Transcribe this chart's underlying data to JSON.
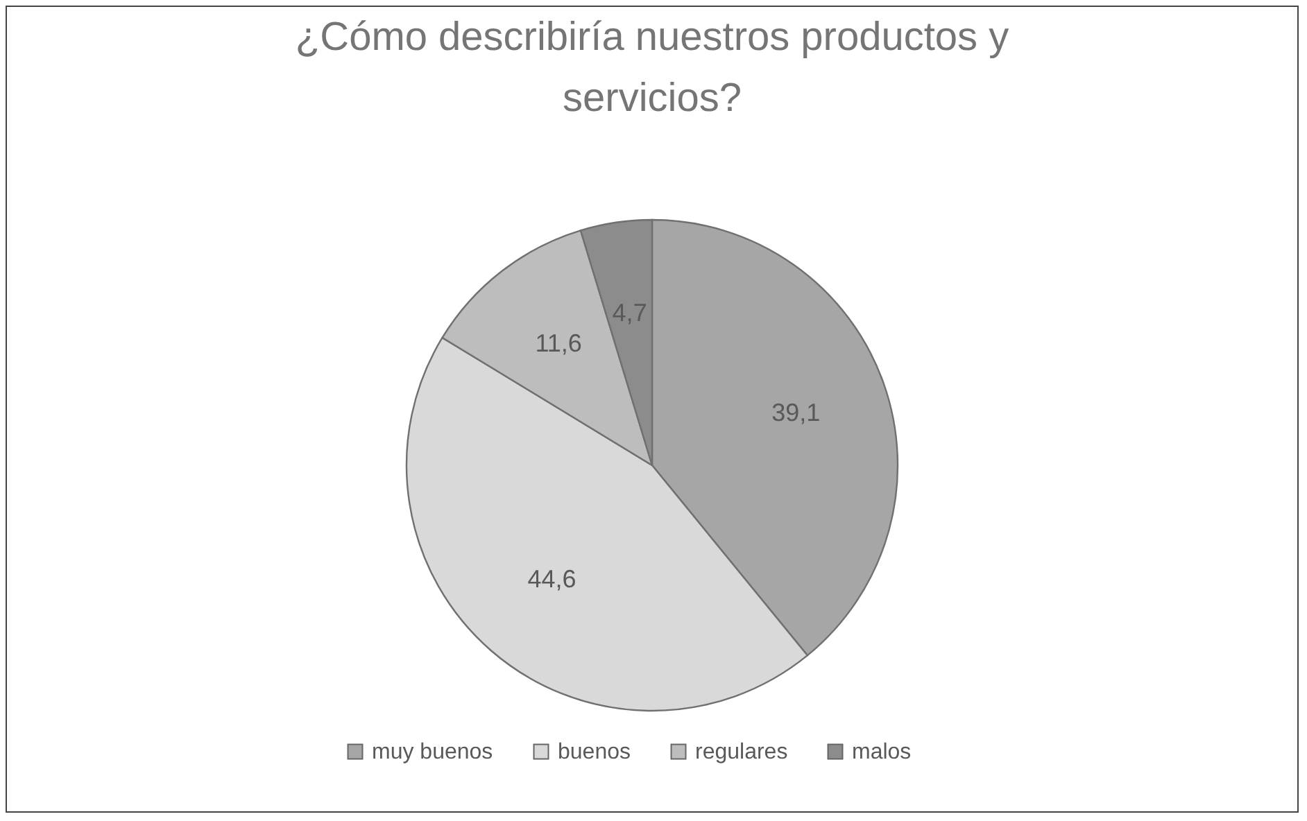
{
  "chart_data": {
    "type": "pie",
    "title": "¿Cómo describiría nuestros productos y servicios?",
    "categories": [
      "muy buenos",
      "buenos",
      "regulares",
      "malos"
    ],
    "values": [
      39.1,
      44.6,
      11.6,
      4.7
    ],
    "colors": [
      "#a6a6a6",
      "#d9d9d9",
      "#bdbdbd",
      "#8c8c8c"
    ],
    "value_labels": [
      "39,1",
      "44,6",
      "11,6",
      "4,7"
    ],
    "legend": "bottom"
  }
}
